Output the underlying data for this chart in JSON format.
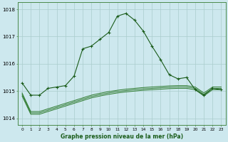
{
  "bg_color": "#cde8ee",
  "grid_color": "#aacccc",
  "line_color_main": "#1a5c1a",
  "line_color_band": "#2d7a2d",
  "xlabel": "Graphe pression niveau de la mer (hPa)",
  "ylim": [
    1013.75,
    1018.25
  ],
  "yticks": [
    1014,
    1015,
    1016,
    1017,
    1018
  ],
  "x_hours": [
    0,
    1,
    2,
    3,
    4,
    5,
    6,
    7,
    8,
    9,
    10,
    11,
    12,
    13,
    14,
    15,
    16,
    17,
    18,
    19,
    20,
    21,
    22,
    23
  ],
  "series_main": [
    1015.3,
    1014.85,
    1014.85,
    1015.1,
    1015.15,
    1015.2,
    1015.55,
    1016.55,
    1016.65,
    1016.9,
    1017.15,
    1017.75,
    1017.85,
    1017.6,
    1017.2,
    1016.65,
    1016.15,
    1015.6,
    1015.45,
    1015.5,
    1015.05,
    1014.85,
    1015.1,
    1015.05
  ],
  "series_band1": [
    1014.82,
    1014.15,
    1014.15,
    1014.25,
    1014.35,
    1014.45,
    1014.55,
    1014.65,
    1014.75,
    1014.82,
    1014.88,
    1014.93,
    1014.97,
    1015.0,
    1015.03,
    1015.05,
    1015.07,
    1015.09,
    1015.1,
    1015.1,
    1015.05,
    1014.82,
    1015.05,
    1015.05
  ],
  "series_band2": [
    1014.88,
    1014.2,
    1014.2,
    1014.3,
    1014.4,
    1014.5,
    1014.6,
    1014.7,
    1014.8,
    1014.87,
    1014.93,
    1014.98,
    1015.02,
    1015.05,
    1015.08,
    1015.1,
    1015.12,
    1015.14,
    1015.15,
    1015.15,
    1015.1,
    1014.88,
    1015.1,
    1015.1
  ],
  "series_band3": [
    1014.93,
    1014.25,
    1014.25,
    1014.35,
    1014.45,
    1014.55,
    1014.65,
    1014.75,
    1014.85,
    1014.92,
    1014.98,
    1015.03,
    1015.07,
    1015.1,
    1015.13,
    1015.15,
    1015.17,
    1015.19,
    1015.2,
    1015.2,
    1015.15,
    1014.93,
    1015.15,
    1015.15
  ]
}
